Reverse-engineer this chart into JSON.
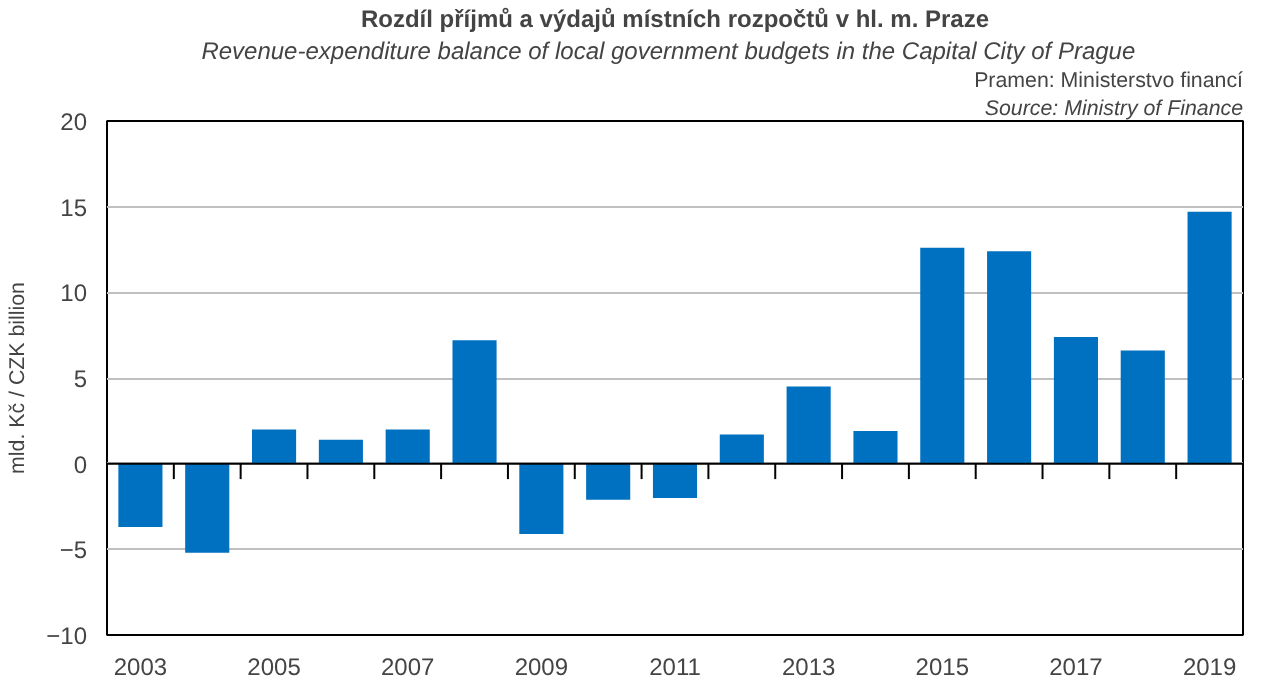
{
  "chart_data": {
    "type": "bar",
    "title": "Rozdíl příjmů a výdajů místních rozpočtů v hl. m. Praze",
    "subtitle": "Revenue-expenditure  balance of local government  budgets in the Capital City of Prague",
    "annotations": [
      "Pramen: Ministerstvo financí",
      "Source: Ministry of Finance"
    ],
    "ylabel": "mld. Kč / CZK billion",
    "categories": [
      "2003",
      null,
      "2005",
      null,
      "2007",
      null,
      "2009",
      null,
      "2011",
      null,
      "2013",
      null,
      "2015",
      null,
      "2017",
      null,
      "2019"
    ],
    "values": [
      -3.7,
      -5.2,
      2.0,
      1.4,
      2.0,
      7.2,
      -4.1,
      -2.1,
      -2.0,
      1.7,
      4.5,
      1.9,
      12.6,
      12.4,
      7.4,
      6.6,
      14.7
    ],
    "color": "#0070c0",
    "ylim": [
      -10,
      20
    ],
    "yticks": [
      -10,
      -5,
      0,
      5,
      10,
      15,
      20
    ],
    "grid": "y"
  }
}
